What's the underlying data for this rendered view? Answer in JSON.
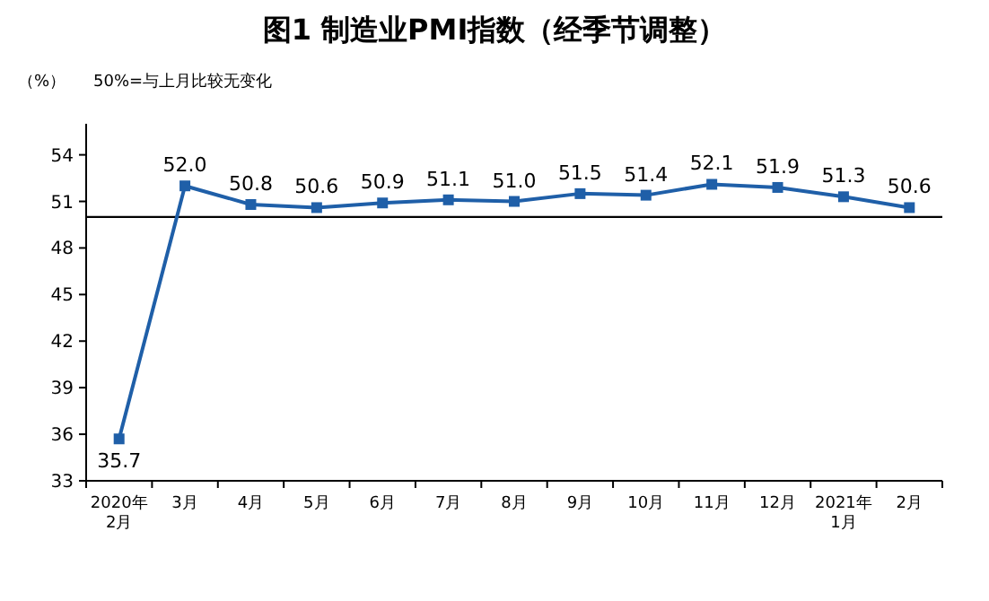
{
  "chart_data": {
    "type": "line",
    "title": "图1 制造业PMI指数（经季节调整）",
    "annotations": [
      "（%）",
      "50%=与上月比较无变化"
    ],
    "categories": [
      "2020年\n2月",
      "3月",
      "4月",
      "5月",
      "6月",
      "7月",
      "8月",
      "9月",
      "10月",
      "11月",
      "12月",
      "2021年\n1月",
      "2月"
    ],
    "series": [
      {
        "color": "#1f5fa8",
        "values": [
          35.7,
          52.0,
          50.8,
          50.6,
          50.9,
          51.1,
          51.0,
          51.5,
          51.4,
          52.1,
          51.9,
          51.3,
          50.6
        ],
        "value_labels": [
          "35.7",
          "52.0",
          "50.8",
          "50.6",
          "50.9",
          "51.1",
          "51.0",
          "51.5",
          "51.4",
          "52.1",
          "51.9",
          "51.3",
          "50.6"
        ]
      }
    ],
    "ylim": [
      33,
      56
    ],
    "yticks": [
      33,
      36,
      39,
      42,
      45,
      48,
      51,
      54
    ],
    "ref_lines": [
      {
        "axis": "y",
        "value": 50,
        "color": "#000000"
      }
    ],
    "marker": "square",
    "grid": false
  }
}
